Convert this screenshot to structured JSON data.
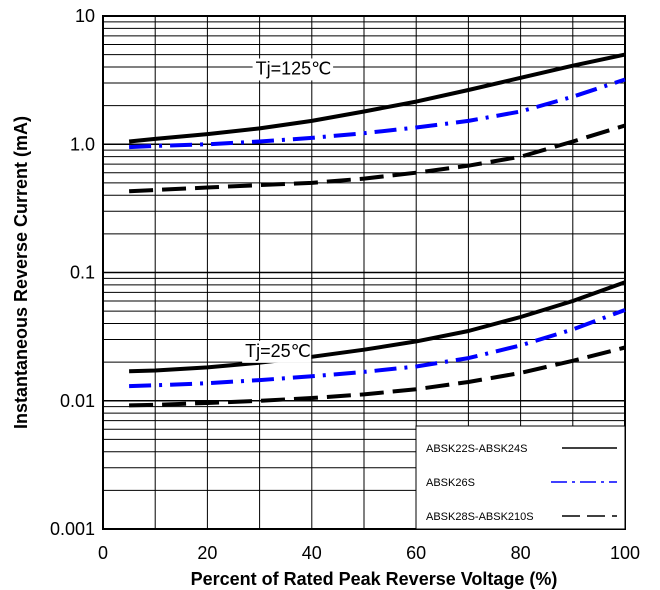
{
  "chart_data": {
    "type": "line",
    "title": "",
    "xlabel": "Percent of Rated Peak Reverse Voltage  (%)",
    "ylabel": "Instantaneous Reverse Current (mA)",
    "xlim": [
      0,
      100
    ],
    "ylim": [
      0.001,
      10
    ],
    "y_scale": "log",
    "grid": true,
    "legend_position": "bottom-right",
    "x_ticks": [
      "0",
      "20",
      "40",
      "60",
      "80",
      "100"
    ],
    "y_ticks": [
      "0.001",
      "0.01",
      "0.1",
      "1.0",
      "10"
    ],
    "annotations": [
      {
        "text": "Tj=125℃",
        "x": 30,
        "y": 3.5
      },
      {
        "text": "Tj=25℃",
        "x": 28,
        "y": 0.022
      }
    ],
    "legend": [
      {
        "label": "ABSK22S-ABSK24S",
        "color": "#000000",
        "style": "solid"
      },
      {
        "label": "ABSK26S",
        "color": "#0000ff",
        "style": "dashdot"
      },
      {
        "label": "ABSK28S-ABSK210S",
        "color": "#000000",
        "style": "dashed"
      }
    ],
    "series": [
      {
        "legend_index": 0,
        "group": "Tj=125℃",
        "x": [
          5,
          10,
          20,
          30,
          40,
          50,
          60,
          70,
          80,
          90,
          100
        ],
        "y": [
          1.05,
          1.1,
          1.2,
          1.33,
          1.52,
          1.8,
          2.15,
          2.65,
          3.3,
          4.1,
          5.0
        ]
      },
      {
        "legend_index": 1,
        "group": "Tj=125℃",
        "x": [
          5,
          10,
          20,
          30,
          40,
          50,
          60,
          70,
          80,
          90,
          100
        ],
        "y": [
          0.95,
          0.97,
          1.0,
          1.05,
          1.12,
          1.22,
          1.35,
          1.52,
          1.8,
          2.35,
          3.2
        ]
      },
      {
        "legend_index": 2,
        "group": "Tj=125℃",
        "x": [
          5,
          10,
          20,
          30,
          40,
          50,
          60,
          70,
          80,
          90,
          100
        ],
        "y": [
          0.43,
          0.44,
          0.46,
          0.48,
          0.5,
          0.54,
          0.6,
          0.68,
          0.8,
          1.05,
          1.4
        ]
      },
      {
        "legend_index": 0,
        "group": "Tj=25℃",
        "x": [
          5,
          10,
          20,
          30,
          40,
          50,
          60,
          70,
          80,
          90,
          100
        ],
        "y": [
          0.017,
          0.0172,
          0.0182,
          0.0198,
          0.022,
          0.025,
          0.029,
          0.035,
          0.045,
          0.06,
          0.084
        ]
      },
      {
        "legend_index": 1,
        "group": "Tj=25℃",
        "x": [
          5,
          10,
          20,
          30,
          40,
          50,
          60,
          70,
          80,
          90,
          100
        ],
        "y": [
          0.013,
          0.0132,
          0.0137,
          0.0145,
          0.0155,
          0.0168,
          0.0185,
          0.0215,
          0.027,
          0.036,
          0.051
        ]
      },
      {
        "legend_index": 2,
        "group": "Tj=25℃",
        "x": [
          5,
          10,
          20,
          30,
          40,
          50,
          60,
          70,
          80,
          90,
          100
        ],
        "y": [
          0.0092,
          0.0093,
          0.0096,
          0.01,
          0.0105,
          0.0112,
          0.0123,
          0.014,
          0.0165,
          0.0205,
          0.026
        ]
      }
    ]
  }
}
